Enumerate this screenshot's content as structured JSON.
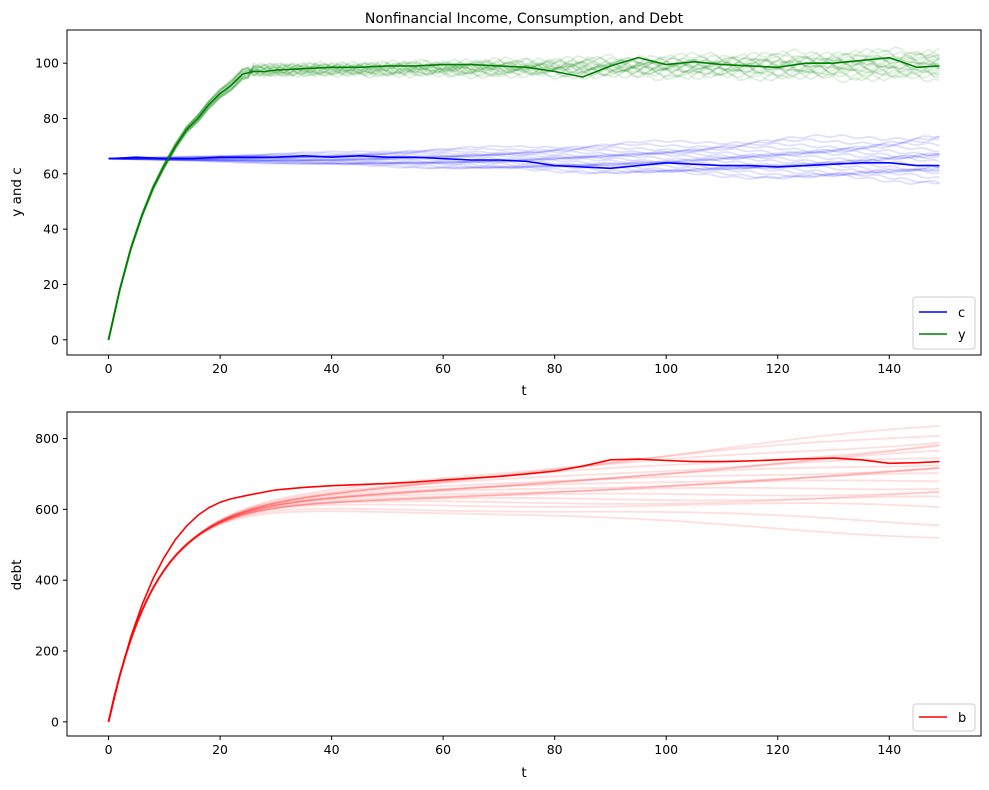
{
  "chart_data": [
    {
      "type": "line",
      "title": "Nonfinancial Income, Consumption, and Debt",
      "xlabel": "t",
      "ylabel": "y and c",
      "xlim": [
        -7.45,
        156.45
      ],
      "ylim": [
        -5.5,
        112
      ],
      "xticks": [
        0,
        20,
        40,
        60,
        80,
        100,
        120,
        140
      ],
      "yticks": [
        0,
        20,
        40,
        60,
        80,
        100
      ],
      "grid": false,
      "legend_position": "lower-right",
      "series": [
        {
          "name": "c",
          "color": "#0000ff",
          "x": [
            0,
            5,
            10,
            15,
            20,
            25,
            30,
            35,
            40,
            45,
            50,
            55,
            60,
            65,
            70,
            75,
            80,
            85,
            90,
            95,
            100,
            105,
            110,
            115,
            120,
            125,
            130,
            135,
            140,
            145,
            149
          ],
          "y": [
            65.5,
            66,
            65.5,
            65.5,
            66,
            66,
            66,
            66.5,
            66,
            66.5,
            66,
            66,
            65.5,
            65,
            65,
            64.5,
            63,
            62.5,
            62,
            63,
            64,
            63.5,
            63,
            63,
            62.5,
            63,
            63.5,
            64,
            64,
            63,
            63
          ]
        },
        {
          "name": "y",
          "color": "#008000",
          "x": [
            0,
            2,
            4,
            6,
            8,
            10,
            12,
            14,
            16,
            18,
            20,
            22,
            24,
            26,
            28,
            30,
            35,
            40,
            45,
            50,
            55,
            60,
            65,
            70,
            75,
            80,
            85,
            90,
            95,
            100,
            105,
            110,
            115,
            120,
            125,
            130,
            135,
            140,
            145,
            149
          ],
          "y": [
            0,
            18,
            33,
            45,
            55,
            63,
            70,
            76,
            80,
            85,
            89,
            92,
            96,
            97,
            97,
            97.5,
            98,
            98.5,
            98.5,
            99,
            99,
            99.5,
            99.5,
            99,
            98.5,
            97,
            95,
            99,
            102,
            99.5,
            100.5,
            99.5,
            99,
            98.5,
            100,
            100,
            101,
            102,
            98.5,
            99
          ]
        }
      ],
      "sample_paths": {
        "count": 20,
        "c_colour": "#0000ff",
        "y_colour": "#008000",
        "c_end_values": [
          74,
          72.5,
          71,
          70,
          69,
          68,
          67.5,
          67,
          66,
          65,
          64.5,
          63.5,
          62.5,
          62,
          61.5,
          60.5,
          60,
          59,
          58,
          57.5
        ],
        "y_end_values": [
          104,
          103.5,
          103,
          102.5,
          102,
          101.5,
          101,
          100.5,
          100,
          100,
          99.5,
          99,
          98.5,
          98,
          97.5,
          97,
          96.5,
          96,
          95.5,
          95
        ]
      }
    },
    {
      "type": "line",
      "title": "",
      "xlabel": "t",
      "ylabel": "debt",
      "xlim": [
        -7.45,
        156.45
      ],
      "ylim": [
        -40,
        875
      ],
      "xticks": [
        0,
        20,
        40,
        60,
        80,
        100,
        120,
        140
      ],
      "yticks": [
        0,
        200,
        400,
        600,
        800
      ],
      "grid": false,
      "legend_position": "lower-right",
      "series": [
        {
          "name": "b",
          "color": "#ff0000",
          "x": [
            0,
            2,
            4,
            6,
            8,
            10,
            12,
            14,
            16,
            18,
            20,
            22,
            25,
            30,
            35,
            40,
            45,
            50,
            55,
            60,
            65,
            70,
            75,
            80,
            85,
            90,
            95,
            100,
            105,
            110,
            115,
            120,
            125,
            130,
            135,
            140,
            145,
            149
          ],
          "y": [
            0,
            130,
            240,
            330,
            405,
            465,
            515,
            553,
            583,
            605,
            620,
            630,
            640,
            655,
            662,
            667,
            670,
            673,
            677,
            683,
            688,
            693,
            700,
            708,
            722,
            740,
            742,
            738,
            735,
            735,
            737,
            740,
            743,
            745,
            740,
            730,
            732,
            735
          ]
        }
      ],
      "sample_paths": {
        "count": 20,
        "colour": "#ff0000",
        "end_values": [
          830,
          815,
          800,
          785,
          770,
          755,
          745,
          735,
          725,
          715,
          705,
          695,
          685,
          670,
          655,
          640,
          625,
          605,
          565,
          530
        ]
      }
    }
  ]
}
